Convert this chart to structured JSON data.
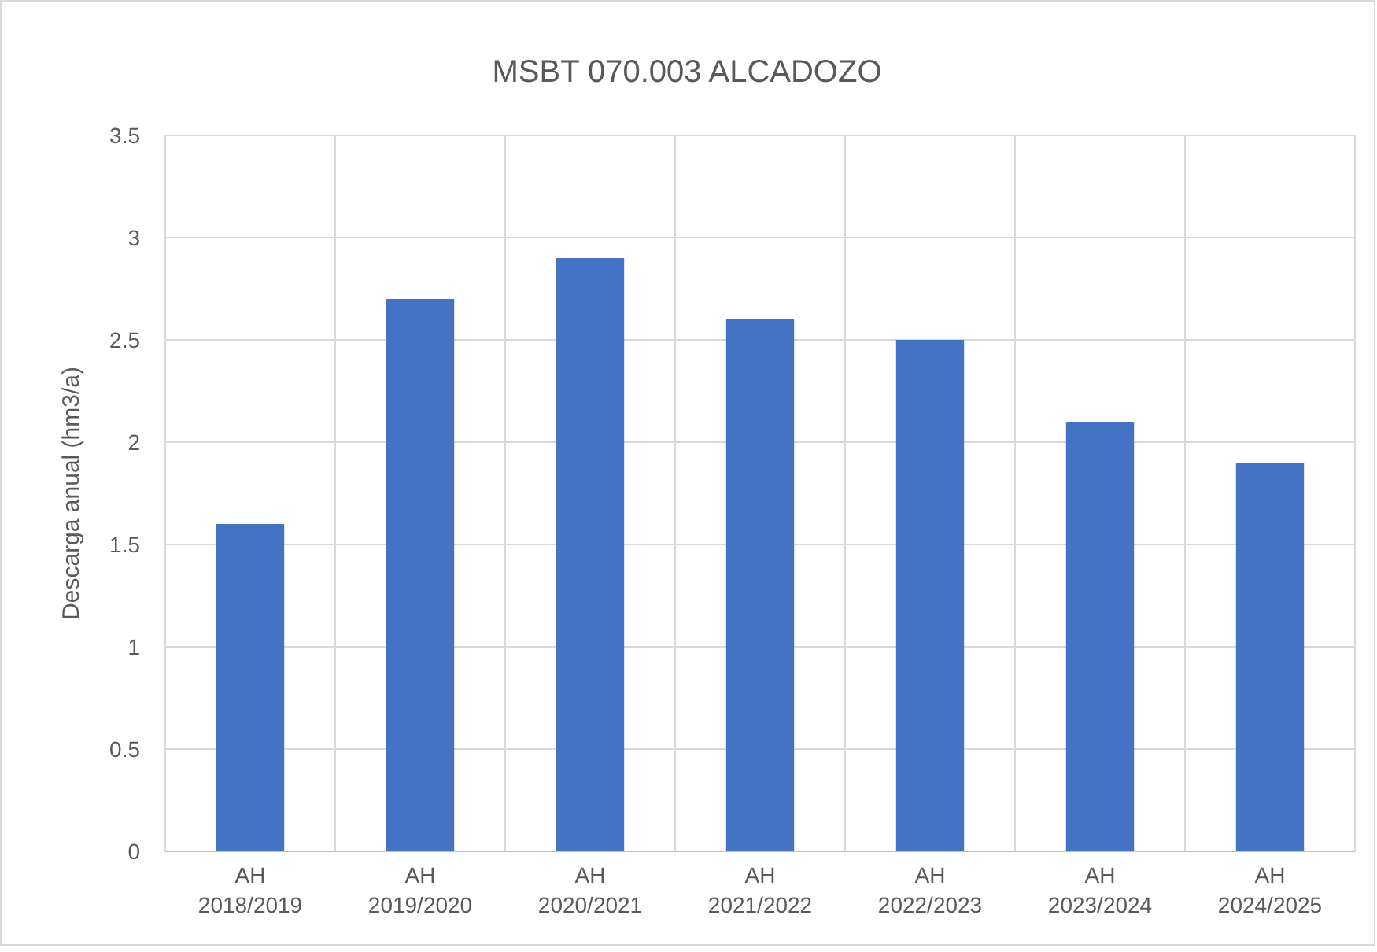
{
  "chart_data": {
    "type": "bar",
    "title": "MSBT 070.003 ALCADOZO",
    "ylabel": "Descarga anual (hm3/a)",
    "categories": [
      "AH 2018/2019",
      "AH 2019/2020",
      "AH 2020/2021",
      "AH 2021/2022",
      "AH 2022/2023",
      "AH 2023/2024",
      "AH 2024/2025"
    ],
    "values": [
      1.6,
      2.7,
      2.9,
      2.6,
      2.5,
      2.1,
      1.9
    ],
    "color": "#4472c4",
    "ylim": [
      0,
      3.5
    ],
    "yticks": [
      0,
      0.5,
      1,
      1.5,
      2,
      2.5,
      3,
      3.5
    ],
    "grid": true
  }
}
